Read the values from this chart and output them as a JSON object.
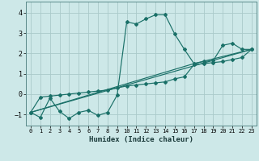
{
  "xlabel": "Humidex (Indice chaleur)",
  "xlim": [
    -0.5,
    23.5
  ],
  "ylim": [
    -1.55,
    4.55
  ],
  "yticks": [
    -1,
    0,
    1,
    2,
    3,
    4
  ],
  "xticks": [
    0,
    1,
    2,
    3,
    4,
    5,
    6,
    7,
    8,
    9,
    10,
    11,
    12,
    13,
    14,
    15,
    16,
    17,
    18,
    19,
    20,
    21,
    22,
    23
  ],
  "bg_color": "#cde8e8",
  "line_color": "#1a7068",
  "grid_color": "#aacaca",
  "line1_x": [
    0,
    1,
    2,
    3,
    4,
    5,
    6,
    7,
    8,
    9,
    10,
    11,
    12,
    13,
    14,
    15,
    16,
    17,
    18,
    19,
    20,
    21,
    22,
    23
  ],
  "line1_y": [
    -0.9,
    -1.15,
    -0.2,
    -0.85,
    -1.2,
    -0.9,
    -0.8,
    -1.05,
    -0.9,
    -0.05,
    3.55,
    3.45,
    3.7,
    3.9,
    3.9,
    2.95,
    2.2,
    1.5,
    1.6,
    1.65,
    2.4,
    2.5,
    2.2,
    2.2
  ],
  "line2_x": [
    0,
    1,
    2,
    3,
    4,
    5,
    6,
    7,
    8,
    9,
    10,
    11,
    12,
    13,
    14,
    15,
    16,
    17,
    18,
    19,
    20,
    21,
    22,
    23
  ],
  "line2_y": [
    -0.9,
    -0.15,
    -0.1,
    -0.05,
    0.0,
    0.05,
    0.1,
    0.15,
    0.2,
    0.3,
    0.4,
    0.45,
    0.5,
    0.55,
    0.6,
    0.75,
    0.85,
    1.45,
    1.5,
    1.55,
    1.6,
    1.7,
    1.8,
    2.2
  ],
  "line3_x": [
    0,
    23
  ],
  "line3_y": [
    -0.9,
    2.2
  ],
  "line4_x": [
    0,
    17,
    23
  ],
  "line4_y": [
    -0.9,
    1.5,
    2.2
  ]
}
